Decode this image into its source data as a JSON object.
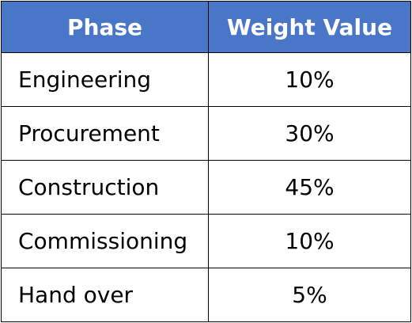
{
  "table": {
    "headers": [
      "Phase",
      "Weight Value"
    ],
    "header_color": "#4a76c8",
    "rows": [
      {
        "phase": "Engineering",
        "weight": "10%"
      },
      {
        "phase": "Procurement",
        "weight": "30%"
      },
      {
        "phase": "Construction",
        "weight": "45%"
      },
      {
        "phase": "Commissioning",
        "weight": "10%"
      },
      {
        "phase": "Hand over",
        "weight": "5%"
      }
    ]
  }
}
